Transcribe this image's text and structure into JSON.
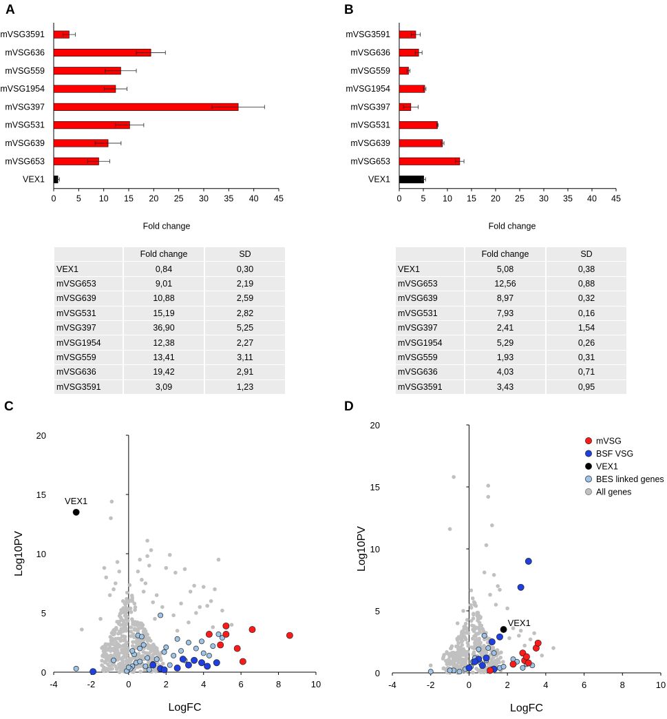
{
  "panels": {
    "a": "A",
    "b": "B",
    "c": "C",
    "d": "D"
  },
  "chart_data": [
    {
      "id": "A",
      "type": "bar",
      "orientation": "horizontal",
      "categories": [
        "mVSG3591",
        "mVSG636",
        "mVSG559",
        "mVSG1954",
        "mVSG397",
        "mVSG531",
        "mVSG639",
        "mVSG653",
        "VEX1"
      ],
      "values": [
        3.09,
        19.42,
        13.41,
        12.38,
        36.9,
        15.19,
        10.88,
        9.01,
        0.84
      ],
      "errors": [
        1.23,
        2.91,
        3.11,
        2.27,
        5.25,
        2.82,
        2.59,
        2.19,
        0.3
      ],
      "colors": [
        "#ff0000",
        "#ff0000",
        "#ff0000",
        "#ff0000",
        "#ff0000",
        "#ff0000",
        "#ff0000",
        "#ff0000",
        "#000000"
      ],
      "xlim": [
        0,
        45
      ],
      "xticks": [
        "0",
        "5",
        "10",
        "15",
        "20",
        "25",
        "30",
        "35",
        "40",
        "45"
      ],
      "xlabel": "Fold change",
      "ylabel": ""
    },
    {
      "id": "B",
      "type": "bar",
      "orientation": "horizontal",
      "categories": [
        "mVSG3591",
        "mVSG636",
        "mVSG559",
        "mVSG1954",
        "mVSG397",
        "mVSG531",
        "mVSG639",
        "mVSG653",
        "VEX1"
      ],
      "values": [
        3.43,
        4.03,
        1.93,
        5.29,
        2.41,
        7.93,
        8.97,
        12.56,
        5.08
      ],
      "errors": [
        0.95,
        0.71,
        0.31,
        0.26,
        1.54,
        0.16,
        0.32,
        0.88,
        0.38
      ],
      "colors": [
        "#ff0000",
        "#ff0000",
        "#ff0000",
        "#ff0000",
        "#ff0000",
        "#ff0000",
        "#ff0000",
        "#ff0000",
        "#000000"
      ],
      "xlim": [
        0,
        45
      ],
      "xticks": [
        "0",
        "5",
        "10",
        "15",
        "20",
        "25",
        "30",
        "35",
        "40",
        "45"
      ],
      "xlabel": "Fold change",
      "ylabel": ""
    },
    {
      "id": "C",
      "type": "scatter",
      "title": "",
      "xlabel": "LogFC",
      "ylabel": "Log10PV",
      "xlim": [
        -4,
        10
      ],
      "ylim": [
        0,
        20
      ],
      "xticks": [
        "-4",
        "-2",
        "0",
        "2",
        "4",
        "6",
        "8",
        "10"
      ],
      "yticks": [
        "0",
        "5",
        "10",
        "15",
        "20"
      ],
      "annotation": "VEX1",
      "series": [
        {
          "name": "All genes",
          "color": "#c0c0c0",
          "x": [
            -0.9,
            -0.95,
            -0.6,
            -0.5,
            -1.3,
            -1.2,
            -0.7,
            -0.8,
            -1.0,
            -0.4,
            1.0,
            1.2,
            1.0,
            2.2,
            2.0,
            2.5,
            3.0,
            3.5,
            4.0,
            4.6,
            4.4,
            4.8,
            3.8,
            -2.5,
            1.5,
            1.8,
            0.9,
            2.8,
            3.2,
            5.0,
            5.5,
            3.3,
            4.2,
            2.6,
            1.1,
            0.8,
            -0.3,
            0.5,
            0.7,
            1.4,
            2.4,
            3.6,
            4.5,
            0.6,
            1.3,
            -1.5,
            -0.2,
            0.3
          ],
          "y": [
            14.4,
            13.0,
            9.3,
            8.5,
            8.8,
            8.0,
            7.5,
            7.0,
            6.5,
            5.0,
            11.1,
            10.3,
            9.8,
            9.9,
            8.8,
            8.4,
            8.7,
            7.3,
            7.2,
            7.0,
            6.0,
            9.5,
            5.5,
            3.6,
            6.5,
            5.5,
            7.5,
            5.8,
            4.2,
            5.2,
            4.0,
            6.8,
            5.6,
            3.5,
            9.0,
            6.8,
            6.0,
            8.5,
            7.8,
            4.5,
            4.8,
            5.0,
            3.8,
            9.5,
            5.9,
            4.5,
            5.8,
            4.0
          ]
        },
        {
          "name": "BES linked genes",
          "color": "#9dc3e6",
          "x": [
            -2.8,
            -0.8,
            0.5,
            0.6,
            0.3,
            1.7,
            0.7,
            0.2,
            2.0,
            2.8,
            3.2,
            4.5,
            4.3,
            4.8,
            3.9,
            2.2,
            1.0,
            0.4,
            0.1,
            -0.1,
            0.0,
            1.3,
            2.4,
            3.6,
            5.0,
            1.5,
            0.8,
            0.6,
            0.2,
            1.1,
            3.0,
            4.0,
            2.6,
            1.9,
            0.9
          ],
          "y": [
            0.3,
            1.0,
            3.1,
            2.0,
            1.5,
            4.8,
            3.0,
            0.5,
            2.1,
            1.8,
            2.5,
            2.2,
            1.4,
            3.2,
            2.6,
            0.6,
            1.2,
            0.8,
            0.3,
            0.1,
            0.4,
            0.7,
            1.4,
            2.0,
            2.9,
            1.1,
            2.3,
            0.9,
            1.8,
            0.2,
            1.0,
            1.6,
            2.8,
            1.7,
            0.5
          ]
        },
        {
          "name": "BSF VSG",
          "color": "#1f3fe0",
          "x": [
            -1.9,
            1.7,
            1.9,
            2.6,
            3.2,
            3.5,
            3.9,
            4.2,
            4.7,
            1.3,
            2.9
          ],
          "y": [
            0.05,
            0.3,
            0.2,
            0.35,
            0.6,
            1.0,
            0.8,
            0.5,
            0.8,
            0.6,
            1.1
          ]
        },
        {
          "name": "mVSG",
          "color": "#ff1a1a",
          "x": [
            4.3,
            4.9,
            5.2,
            5.2,
            6.6,
            5.8,
            6.1,
            8.6
          ],
          "y": [
            3.2,
            2.3,
            3.9,
            3.2,
            3.6,
            2.0,
            0.9,
            3.1
          ]
        },
        {
          "name": "VEX1",
          "color": "#000000",
          "x": [
            -2.8
          ],
          "y": [
            13.5
          ]
        }
      ]
    },
    {
      "id": "D",
      "type": "scatter",
      "title": "",
      "xlabel": "LogFC",
      "ylabel": "Log10PV",
      "xlim": [
        -4,
        10
      ],
      "ylim": [
        0,
        20
      ],
      "xticks": [
        "-4",
        "-2",
        "0",
        "2",
        "4",
        "6",
        "8",
        "10"
      ],
      "yticks": [
        "0",
        "5",
        "10",
        "15",
        "20"
      ],
      "annotation": "VEX1",
      "legend": [
        "mVSG",
        "BSF VSG",
        "VEX1",
        "BES linked genes",
        "All genes"
      ],
      "series": [
        {
          "name": "All genes",
          "color": "#c0c0c0",
          "x": [
            -0.8,
            -1.0,
            1.0,
            1.0,
            1.2,
            0.9,
            0.8,
            1.3,
            1.5,
            1.6,
            2.0,
            2.3,
            2.6,
            3.2,
            3.4,
            3.8,
            4.4,
            -2.0,
            -0.3,
            0.2,
            0.6,
            1.8,
            2.1,
            -0.6,
            0.4,
            1.1,
            0.7,
            2.9,
            3.0,
            -1.1,
            1.4,
            2.7
          ],
          "y": [
            15.8,
            11.6,
            15.1,
            14.2,
            11.9,
            10.3,
            8.1,
            7.9,
            7.0,
            6.7,
            5.2,
            3.6,
            3.0,
            2.7,
            3.2,
            1.4,
            2.0,
            0.6,
            5.0,
            3.5,
            4.5,
            3.4,
            2.8,
            4.0,
            2.2,
            6.3,
            1.6,
            2.2,
            1.0,
            0.4,
            5.5,
            3.4
          ]
        },
        {
          "name": "BES linked genes",
          "color": "#9dc3e6",
          "x": [
            -2.0,
            0.3,
            0.8,
            1.0,
            1.3,
            0.6,
            0.1,
            -0.2,
            -0.5,
            1.6,
            2.3,
            2.5,
            3.0,
            3.3,
            0.5,
            -0.8,
            0.9,
            1.2,
            1.8,
            0.2,
            -1.0,
            2.8
          ],
          "y": [
            0.1,
            1.2,
            3.0,
            2.0,
            1.6,
            0.8,
            0.5,
            0.3,
            0.1,
            0.4,
            1.1,
            0.9,
            0.7,
            0.6,
            1.9,
            0.2,
            1.0,
            0.3,
            0.5,
            0.9,
            0.2,
            0.4
          ]
        },
        {
          "name": "BSF VSG",
          "color": "#1f3fe0",
          "x": [
            3.1,
            2.7,
            1.2,
            1.6,
            0.5,
            0.9,
            0.3,
            0.0,
            1.3,
            0.7
          ],
          "y": [
            9.0,
            6.9,
            2.5,
            2.9,
            1.1,
            1.2,
            0.9,
            0.4,
            0.3,
            0.6
          ]
        },
        {
          "name": "mVSG",
          "color": "#ff1a1a",
          "x": [
            3.5,
            3.6,
            2.8,
            2.9,
            3.0,
            2.3,
            3.1,
            1.1
          ],
          "y": [
            2.0,
            2.4,
            1.6,
            1.0,
            1.3,
            0.7,
            0.8,
            0.2
          ]
        },
        {
          "name": "VEX1",
          "color": "#000000",
          "x": [
            1.8
          ],
          "y": [
            3.5
          ]
        }
      ]
    }
  ],
  "tables": {
    "a": {
      "headers": [
        "",
        "Fold change",
        "SD"
      ],
      "rows": [
        [
          "VEX1",
          "0,84",
          "0,30"
        ],
        [
          "mVSG653",
          "9,01",
          "2,19"
        ],
        [
          "mVSG639",
          "10,88",
          "2,59"
        ],
        [
          "mVSG531",
          "15,19",
          "2,82"
        ],
        [
          "mVSG397",
          "36,90",
          "5,25"
        ],
        [
          "mVSG1954",
          "12,38",
          "2,27"
        ],
        [
          "mVSG559",
          "13,41",
          "3,11"
        ],
        [
          "mVSG636",
          "19,42",
          "2,91"
        ],
        [
          "mVSG3591",
          "3,09",
          "1,23"
        ]
      ]
    },
    "b": {
      "headers": [
        "",
        "Fold change",
        "SD"
      ],
      "rows": [
        [
          "VEX1",
          "5,08",
          "0,38"
        ],
        [
          "mVSG653",
          "12,56",
          "0,88"
        ],
        [
          "mVSG639",
          "8,97",
          "0,32"
        ],
        [
          "mVSG531",
          "7,93",
          "0,16"
        ],
        [
          "mVSG397",
          "2,41",
          "1,54"
        ],
        [
          "mVSG1954",
          "5,29",
          "0,26"
        ],
        [
          "mVSG559",
          "1,93",
          "0,31"
        ],
        [
          "mVSG636",
          "4,03",
          "0,71"
        ],
        [
          "mVSG3591",
          "3,43",
          "0,95"
        ]
      ]
    }
  }
}
